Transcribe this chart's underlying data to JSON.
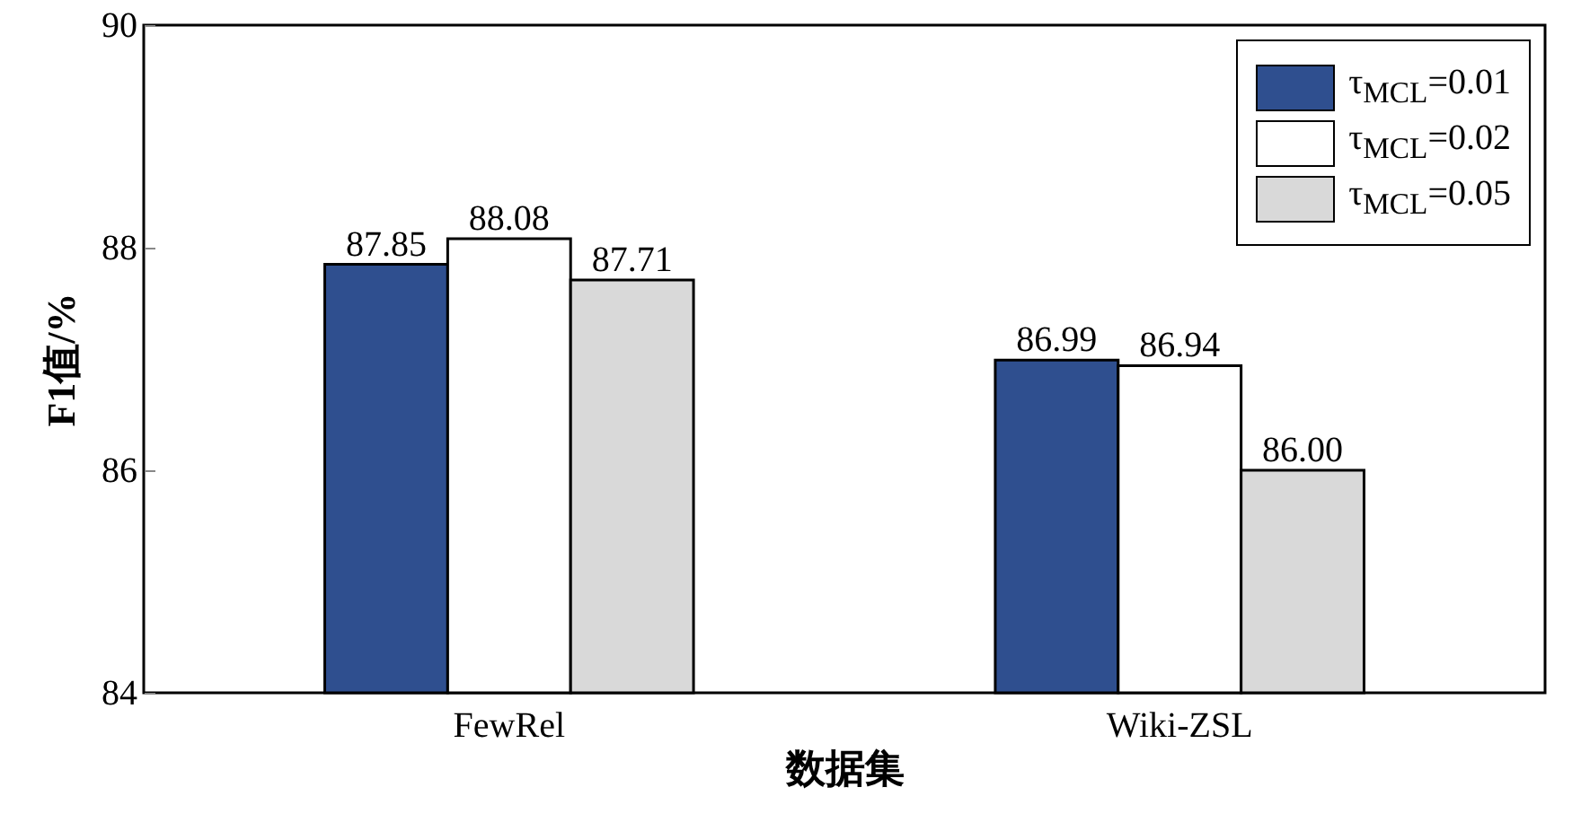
{
  "chart_data": {
    "type": "bar",
    "xlabel": "数据集",
    "ylabel": "F1值/%",
    "categories": [
      "FewRel",
      "Wiki-ZSL"
    ],
    "series": [
      {
        "name": "τ$_{MCL}$=0.01",
        "color": "#2f4f8f",
        "values": [
          87.85,
          86.99
        ],
        "value_labels": [
          "87.85",
          "86.99"
        ]
      },
      {
        "name": "τ$_{MCL}$=0.02",
        "color": "#ffffff",
        "values": [
          88.08,
          86.94
        ],
        "value_labels": [
          "88.08",
          "86.94"
        ]
      },
      {
        "name": "τ$_{MCL}$=0.05",
        "color": "#d9d9d9",
        "values": [
          87.71,
          86.0
        ],
        "value_labels": [
          "87.71",
          "86.00"
        ]
      }
    ],
    "ylim": [
      84,
      90
    ],
    "yticks": [
      84,
      86,
      88,
      90
    ],
    "legend": "top right",
    "grid": false
  }
}
